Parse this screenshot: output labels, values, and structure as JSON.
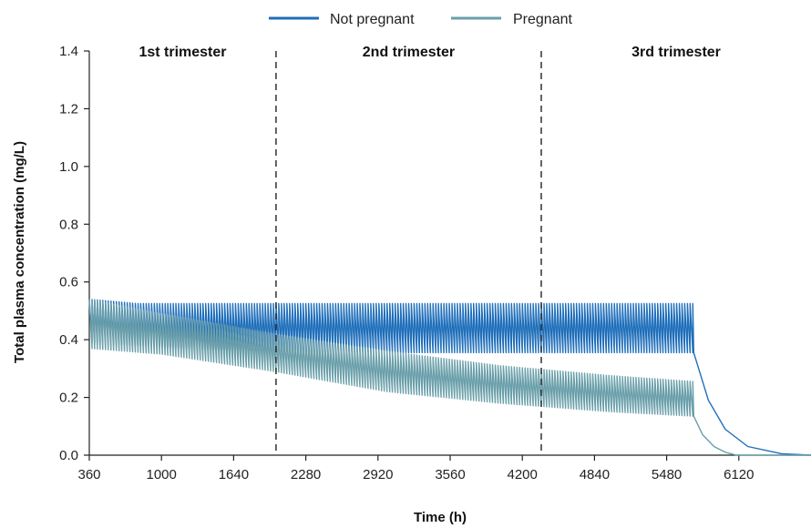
{
  "chart_data": {
    "type": "line",
    "xlabel": "Time (h)",
    "ylabel": "Total plasma concentration (mg/L)",
    "xlim": [
      360,
      6760
    ],
    "ylim": [
      0.0,
      1.4
    ],
    "xticks": [
      360,
      1000,
      1640,
      2280,
      2920,
      3560,
      4200,
      4840,
      5480,
      6120
    ],
    "xtick_labels": [
      "360",
      "1000",
      "1640",
      "2280",
      "2920",
      "3560",
      "4200",
      "4840",
      "5480",
      "6120"
    ],
    "yticks": [
      0.0,
      0.2,
      0.4,
      0.6,
      0.8,
      1.0,
      1.2,
      1.4
    ],
    "ytick_labels": [
      "0.0",
      "0.2",
      "0.4",
      "0.6",
      "0.8",
      "1.0",
      "1.2",
      "1.4"
    ],
    "grid": false,
    "legend_position": "top-center",
    "dosing_interval_h": 24,
    "dosing_stop_h": 5720,
    "phase_boundaries_h": [
      2016,
      4368
    ],
    "phase_labels": [
      {
        "label": "1st trimester",
        "x": 1188
      },
      {
        "label": "2nd trimester",
        "x": 3192
      },
      {
        "label": "3rd trimester",
        "x": 5564
      }
    ],
    "series": [
      {
        "name": "Not pregnant",
        "color": "#1f6fba",
        "peak": [
          [
            360,
            0.54
          ],
          [
            800,
            0.525
          ],
          [
            5720,
            0.525
          ]
        ],
        "trough": [
          [
            360,
            0.39
          ],
          [
            1000,
            0.375
          ],
          [
            2000,
            0.36
          ],
          [
            3000,
            0.355
          ],
          [
            5720,
            0.355
          ]
        ],
        "washout": [
          [
            5720,
            0.355
          ],
          [
            5850,
            0.19
          ],
          [
            6000,
            0.09
          ],
          [
            6200,
            0.03
          ],
          [
            6500,
            0.005
          ],
          [
            6760,
            0.0
          ]
        ]
      },
      {
        "name": "Pregnant",
        "color": "#6a9faa",
        "peak": [
          [
            360,
            0.54
          ],
          [
            1000,
            0.49
          ],
          [
            2000,
            0.42
          ],
          [
            3000,
            0.36
          ],
          [
            4000,
            0.31
          ],
          [
            5000,
            0.275
          ],
          [
            5720,
            0.255
          ]
        ],
        "trough": [
          [
            360,
            0.37
          ],
          [
            1000,
            0.35
          ],
          [
            2000,
            0.29
          ],
          [
            3000,
            0.22
          ],
          [
            4000,
            0.18
          ],
          [
            5000,
            0.15
          ],
          [
            5720,
            0.135
          ]
        ],
        "washout": [
          [
            5720,
            0.135
          ],
          [
            5800,
            0.07
          ],
          [
            5900,
            0.03
          ],
          [
            6000,
            0.01
          ],
          [
            6100,
            0.0
          ],
          [
            6760,
            0.0
          ]
        ]
      }
    ]
  }
}
